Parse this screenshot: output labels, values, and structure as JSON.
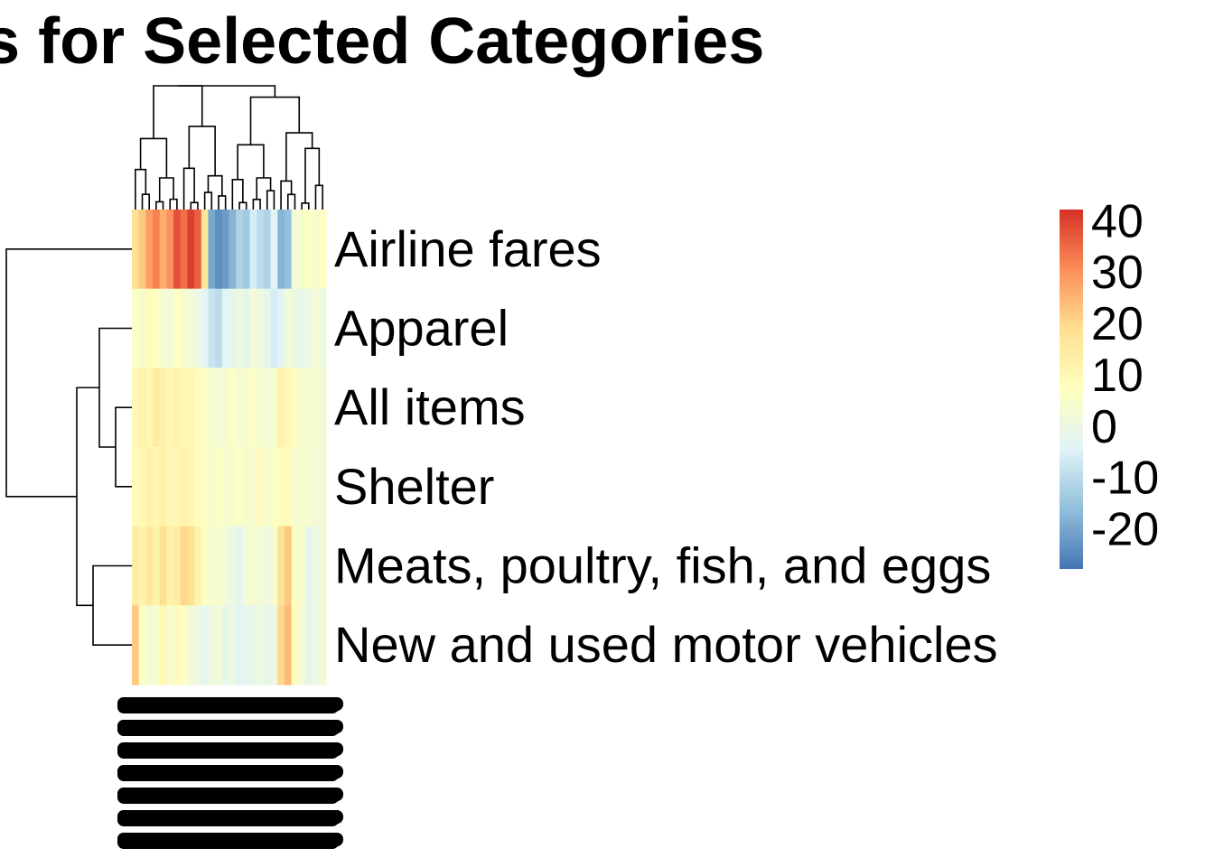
{
  "chart_data": {
    "type": "heatmap",
    "title": "es for Selected Categories",
    "row_labels": [
      "Airline fares",
      "Apparel",
      "All items",
      "Shelter",
      "Meats, poultry, fish, and eggs",
      "New and used motor vehicles"
    ],
    "values": [
      [
        18,
        22,
        28,
        32,
        26,
        30,
        38,
        34,
        40,
        36,
        16,
        -20,
        -24,
        -22,
        -18,
        -12,
        -14,
        -6,
        -10,
        -12,
        -4,
        -18,
        -16,
        2,
        4,
        6,
        4,
        6
      ],
      [
        6,
        4,
        8,
        6,
        4,
        2,
        6,
        4,
        2,
        0,
        -4,
        -8,
        -10,
        -4,
        -2,
        0,
        -2,
        2,
        0,
        -2,
        -6,
        -4,
        2,
        0,
        -2,
        0,
        2,
        0
      ],
      [
        10,
        12,
        10,
        14,
        12,
        10,
        12,
        10,
        10,
        8,
        6,
        4,
        2,
        4,
        6,
        4,
        4,
        6,
        4,
        2,
        4,
        12,
        10,
        6,
        4,
        4,
        4,
        2
      ],
      [
        8,
        10,
        12,
        10,
        12,
        10,
        10,
        12,
        10,
        8,
        6,
        4,
        6,
        4,
        4,
        6,
        4,
        4,
        8,
        4,
        6,
        8,
        8,
        4,
        4,
        4,
        2,
        2
      ],
      [
        14,
        12,
        16,
        12,
        18,
        12,
        14,
        20,
        18,
        12,
        6,
        4,
        4,
        2,
        0,
        -2,
        2,
        4,
        2,
        0,
        4,
        18,
        22,
        6,
        4,
        -2,
        0,
        2
      ],
      [
        22,
        6,
        2,
        4,
        10,
        4,
        8,
        6,
        2,
        0,
        -2,
        0,
        2,
        -2,
        0,
        -4,
        -2,
        -2,
        0,
        -2,
        0,
        20,
        24,
        8,
        2,
        -2,
        0,
        2
      ]
    ],
    "color_scale": {
      "min": -28,
      "max": 42,
      "colors": [
        "#4575b4",
        "#91bfdb",
        "#e0f3f8",
        "#ffffbf",
        "#fee090",
        "#fc8d59",
        "#d73027"
      ],
      "legend_ticks": [
        40,
        30,
        20,
        10,
        0,
        -10,
        -20
      ]
    },
    "row_dendrogram": true,
    "column_dendrogram": true,
    "column_labels_legible": false
  }
}
